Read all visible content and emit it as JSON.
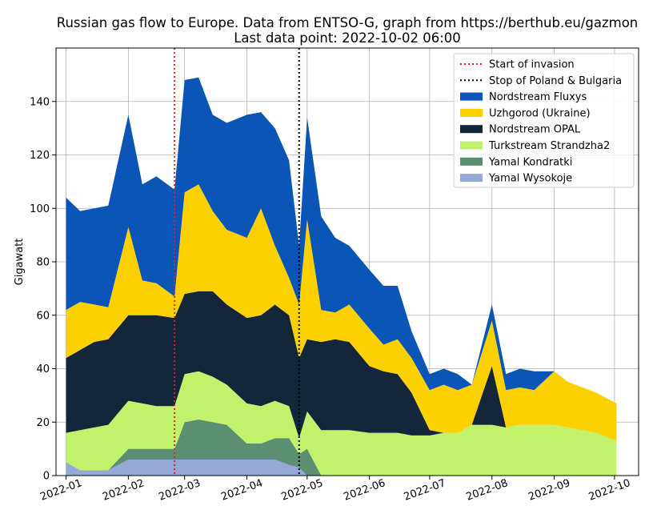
{
  "chart_data": {
    "type": "area",
    "title": "Russian gas flow to Europe. Data from ENTSO-G, graph from https://berthub.eu/gazmon",
    "subtitle": "Last data point: 2022-10-02 06:00",
    "xlabel": "",
    "ylabel": "Gigawatt",
    "ylim": [
      0,
      160
    ],
    "y_ticks": [
      0,
      20,
      40,
      60,
      80,
      100,
      120,
      140
    ],
    "xlim": [
      "2021-12-27",
      "2022-10-13"
    ],
    "x_ticks": [
      "2022-01-01",
      "2022-02-01",
      "2022-03-01",
      "2022-04-01",
      "2022-05-01",
      "2022-06-01",
      "2022-07-01",
      "2022-08-01",
      "2022-09-01",
      "2022-10-01"
    ],
    "x_tick_labels": [
      "2022-01",
      "2022-02",
      "2022-03",
      "2022-04",
      "2022-05",
      "2022-06",
      "2022-07",
      "2022-08",
      "2022-09",
      "2022-10"
    ],
    "grid": true,
    "legend_position": "top-right",
    "stacked": true,
    "vlines": [
      {
        "name": "Start of invasion",
        "x": "2022-02-24",
        "color": "#d62728",
        "style": "dotted"
      },
      {
        "name": "Stop of Poland & Bulgaria",
        "x": "2022-04-27",
        "color": "#000000",
        "style": "dotted"
      }
    ],
    "x": [
      "2022-01-01",
      "2022-01-08",
      "2022-01-15",
      "2022-01-22",
      "2022-02-01",
      "2022-02-08",
      "2022-02-15",
      "2022-02-24",
      "2022-03-01",
      "2022-03-08",
      "2022-03-15",
      "2022-03-22",
      "2022-04-01",
      "2022-04-08",
      "2022-04-15",
      "2022-04-22",
      "2022-04-27",
      "2022-05-01",
      "2022-05-08",
      "2022-05-15",
      "2022-05-22",
      "2022-06-01",
      "2022-06-08",
      "2022-06-15",
      "2022-06-22",
      "2022-07-01",
      "2022-07-08",
      "2022-07-15",
      "2022-07-22",
      "2022-08-01",
      "2022-08-08",
      "2022-08-15",
      "2022-08-22",
      "2022-09-01",
      "2022-09-08",
      "2022-09-15",
      "2022-09-22",
      "2022-10-02"
    ],
    "series": [
      {
        "name": "Yamal Wysokoje",
        "color": "#95a8d6",
        "values": [
          5,
          2,
          2,
          2,
          6,
          6,
          6,
          6,
          6,
          6,
          6,
          6,
          6,
          6,
          6,
          4,
          3,
          0,
          0,
          0,
          0,
          0,
          0,
          0,
          0,
          0,
          0,
          0,
          0,
          0,
          0,
          0,
          0,
          0,
          0,
          0,
          0,
          0
        ]
      },
      {
        "name": "Yamal Kondratki",
        "color": "#5b8f72",
        "values": [
          0,
          0,
          0,
          0,
          4,
          4,
          4,
          4,
          14,
          15,
          14,
          13,
          6,
          6,
          8,
          10,
          5,
          10,
          0,
          0,
          0,
          0,
          0,
          0,
          0,
          0,
          0,
          0,
          0,
          0,
          0,
          0,
          0,
          0,
          0,
          0,
          0,
          0
        ]
      },
      {
        "name": "Turkstream Strandzha2",
        "color": "#c2f26b",
        "values": [
          11,
          15,
          16,
          17,
          18,
          17,
          16,
          16,
          18,
          18,
          17,
          15,
          15,
          14,
          14,
          12,
          6,
          14,
          17,
          17,
          17,
          16,
          16,
          16,
          15,
          15,
          16,
          16,
          19,
          19,
          18,
          19,
          19,
          19,
          18,
          17,
          16,
          13
        ]
      },
      {
        "name": "Nordstream OPAL",
        "color": "#13263a",
        "values": [
          28,
          30,
          32,
          32,
          32,
          33,
          34,
          33,
          30,
          30,
          32,
          30,
          32,
          34,
          36,
          34,
          30,
          27,
          33,
          34,
          33,
          25,
          23,
          22,
          16,
          2,
          0,
          0,
          0,
          22,
          0,
          0,
          0,
          0,
          0,
          0,
          0,
          0
        ]
      },
      {
        "name": "Uzhgorod (Ukraine)",
        "color": "#fdd100",
        "values": [
          18,
          18,
          14,
          12,
          33,
          13,
          12,
          8,
          38,
          40,
          30,
          28,
          30,
          40,
          22,
          14,
          20,
          45,
          12,
          10,
          14,
          14,
          10,
          13,
          13,
          15,
          18,
          16,
          15,
          17,
          14,
          14,
          13,
          20,
          17,
          16,
          15,
          14
        ]
      },
      {
        "name": "Nordstream Fluxys",
        "color": "#0a55b6",
        "values": [
          42,
          34,
          36,
          38,
          42,
          36,
          40,
          40,
          42,
          40,
          36,
          40,
          46,
          36,
          44,
          44,
          22,
          38,
          35,
          28,
          22,
          22,
          22,
          20,
          10,
          6,
          6,
          6,
          0,
          6,
          6,
          7,
          7,
          0,
          0,
          0,
          0,
          0
        ]
      }
    ]
  }
}
